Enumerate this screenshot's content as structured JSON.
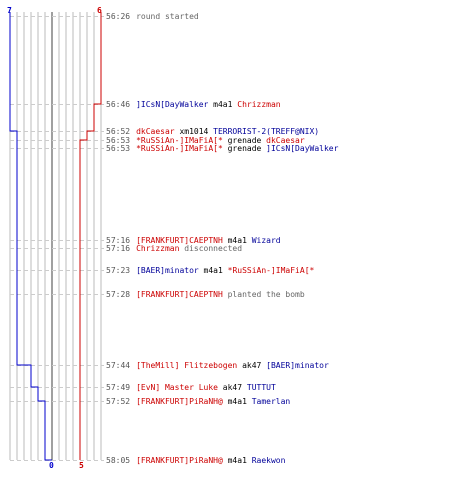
{
  "colors": {
    "blue_team": "#0000cc",
    "red_team": "#cc0000",
    "grid": "#bbbbbb",
    "gridline": "#cccccc",
    "center": "#888888"
  },
  "counts": {
    "blue_start": "7",
    "red_start": "6",
    "blue_end": "0",
    "red_end": "5"
  },
  "chart_data": {
    "type": "line",
    "series": [
      {
        "values": [
          7,
          7,
          7,
          6,
          6,
          6,
          6,
          6,
          6,
          6,
          6,
          5,
          4,
          3,
          3,
          1,
          0
        ]
      },
      {
        "values": [
          6,
          6,
          5,
          5,
          5,
          5,
          5,
          5,
          5,
          5,
          5,
          5,
          5,
          5,
          5,
          5,
          5
        ]
      }
    ],
    "ylim": [
      0,
      7
    ]
  },
  "events": [
    {
      "time": "56:26",
      "parts": [
        {
          "t": "round started",
          "c": "grey"
        }
      ]
    },
    {
      "time": "56:46",
      "parts": [
        {
          "t": "]ICsN[DayWalker",
          "c": "blue"
        },
        {
          "t": " m4a1 ",
          "c": "dark"
        },
        {
          "t": "Chrizzman",
          "c": "red"
        }
      ]
    },
    {
      "time": "56:52",
      "parts": [
        {
          "t": "dkCaesar",
          "c": "red"
        },
        {
          "t": " xm1014 ",
          "c": "dark"
        },
        {
          "t": "TERRORIST-2(TREFF@NIX)",
          "c": "blue"
        }
      ]
    },
    {
      "time": "56:53",
      "parts": [
        {
          "t": "*RuSSiAn-]IMaFiA[*",
          "c": "red"
        },
        {
          "t": " grenade ",
          "c": "dark"
        },
        {
          "t": "dkCaesar",
          "c": "red"
        }
      ]
    },
    {
      "time": "56:53",
      "parts": [
        {
          "t": "*RuSSiAn-]IMaFiA[*",
          "c": "red"
        },
        {
          "t": " grenade ",
          "c": "dark"
        },
        {
          "t": "]ICsN[DayWalker",
          "c": "blue"
        }
      ]
    },
    {
      "time": "57:16",
      "parts": [
        {
          "t": "[FRANKFURT]CAEPTNH",
          "c": "red"
        },
        {
          "t": " m4a1 ",
          "c": "dark"
        },
        {
          "t": "Wizard",
          "c": "blue"
        }
      ]
    },
    {
      "time": "57:16",
      "parts": [
        {
          "t": "Chrizzman",
          "c": "red"
        },
        {
          "t": " disconnected",
          "c": "grey"
        }
      ]
    },
    {
      "time": "57:23",
      "parts": [
        {
          "t": "[BAER]minator",
          "c": "blue"
        },
        {
          "t": " m4a1 ",
          "c": "dark"
        },
        {
          "t": "*RuSSiAn-]IMaFiA[*",
          "c": "red"
        }
      ]
    },
    {
      "time": "57:28",
      "parts": [
        {
          "t": "[FRANKFURT]CAEPTNH",
          "c": "red"
        },
        {
          "t": " planted the bomb",
          "c": "grey"
        }
      ]
    },
    {
      "time": "57:44",
      "parts": [
        {
          "t": "[TheMill] Flitzebogen",
          "c": "red"
        },
        {
          "t": " ak47 ",
          "c": "dark"
        },
        {
          "t": "[BAER]minator",
          "c": "blue"
        }
      ]
    },
    {
      "time": "57:49",
      "parts": [
        {
          "t": "[EvN] Master Luke",
          "c": "red"
        },
        {
          "t": " ak47 ",
          "c": "dark"
        },
        {
          "t": "TUTTUT",
          "c": "blue"
        }
      ]
    },
    {
      "time": "57:52",
      "parts": [
        {
          "t": "[FRANKFURT]PiRaNH@",
          "c": "red"
        },
        {
          "t": " m4a1 ",
          "c": "dark"
        },
        {
          "t": "Tamerlan",
          "c": "blue"
        }
      ]
    },
    {
      "time": "58:05",
      "parts": [
        {
          "t": "[FRANKFURT]PiRaNH@",
          "c": "red"
        },
        {
          "t": " m4a1 ",
          "c": "dark"
        },
        {
          "t": "Raekwon",
          "c": "blue"
        }
      ]
    }
  ]
}
